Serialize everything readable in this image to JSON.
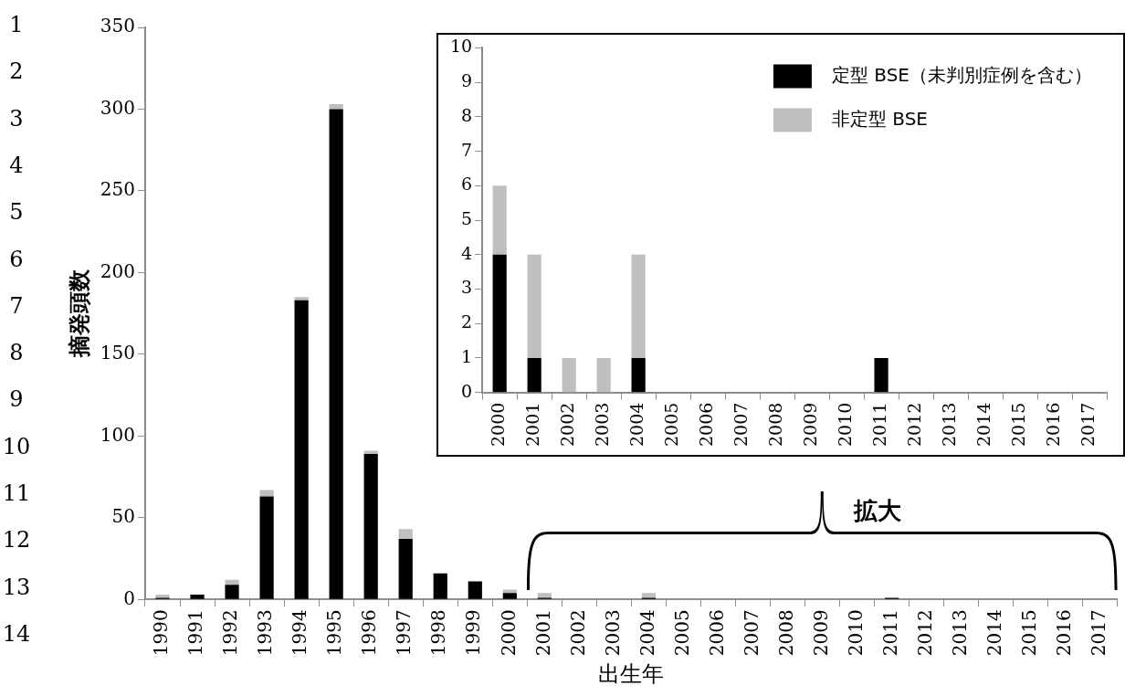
{
  "chart_data": [
    {
      "type": "bar",
      "xlabel": "出生年",
      "ylabel": "摘発頭数",
      "stacked": true,
      "categories": [
        "1990",
        "1991",
        "1992",
        "1993",
        "1994",
        "1995",
        "1996",
        "1997",
        "1998",
        "1999",
        "2000",
        "2001",
        "2002",
        "2003",
        "2004",
        "2005",
        "2006",
        "2007",
        "2008",
        "2009",
        "2010",
        "2011",
        "2012",
        "2013",
        "2014",
        "2015",
        "2016",
        "2017"
      ],
      "series": [
        {
          "color": "#000000",
          "values": [
            1,
            3,
            9,
            63,
            183,
            300,
            89,
            37,
            16,
            11,
            4,
            1,
            0,
            0,
            1,
            0,
            0,
            0,
            0,
            0,
            0,
            1,
            0,
            0,
            0,
            0,
            0,
            0
          ]
        },
        {
          "color": "#bfbfbf",
          "values": [
            2,
            0,
            3,
            4,
            2,
            3,
            2,
            6,
            0,
            0,
            2,
            3,
            null,
            null,
            3,
            0,
            0,
            0,
            0,
            0,
            0,
            0,
            0,
            0,
            0,
            0,
            0,
            0
          ]
        }
      ],
      "ylim": [
        0,
        350
      ],
      "yticks": [
        0,
        50,
        100,
        150,
        200,
        250,
        300,
        350
      ],
      "annotations": [
        "拡大",
        "1",
        "2",
        "3",
        "4",
        "5",
        "6",
        "7",
        "8",
        "9",
        "10",
        "11",
        "12",
        "13",
        "14"
      ]
    },
    {
      "type": "bar",
      "stacked": true,
      "legend": "top right",
      "categories": [
        "2000",
        "2001",
        "2002",
        "2003",
        "2004",
        "2005",
        "2006",
        "2007",
        "2008",
        "2009",
        "2010",
        "2011",
        "2012",
        "2013",
        "2014",
        "2015",
        "2016",
        "2017"
      ],
      "series": [
        {
          "name": "定型 BSE（未判別症例を含む）",
          "color": "#000000",
          "values": [
            4,
            1,
            0,
            0,
            1,
            0,
            0,
            0,
            0,
            0,
            0,
            1,
            0,
            0,
            0,
            0,
            0,
            0
          ]
        },
        {
          "name": "非定型 BSE",
          "color": "#bfbfbf",
          "values": [
            2,
            3,
            1,
            1,
            3,
            0,
            0,
            0,
            0,
            0,
            0,
            0,
            0,
            0,
            0,
            0,
            0,
            0
          ]
        }
      ],
      "ylim": [
        0,
        10
      ],
      "yticks": [
        0,
        1,
        2,
        3,
        4,
        5,
        6,
        7,
        8,
        9,
        10
      ]
    }
  ]
}
